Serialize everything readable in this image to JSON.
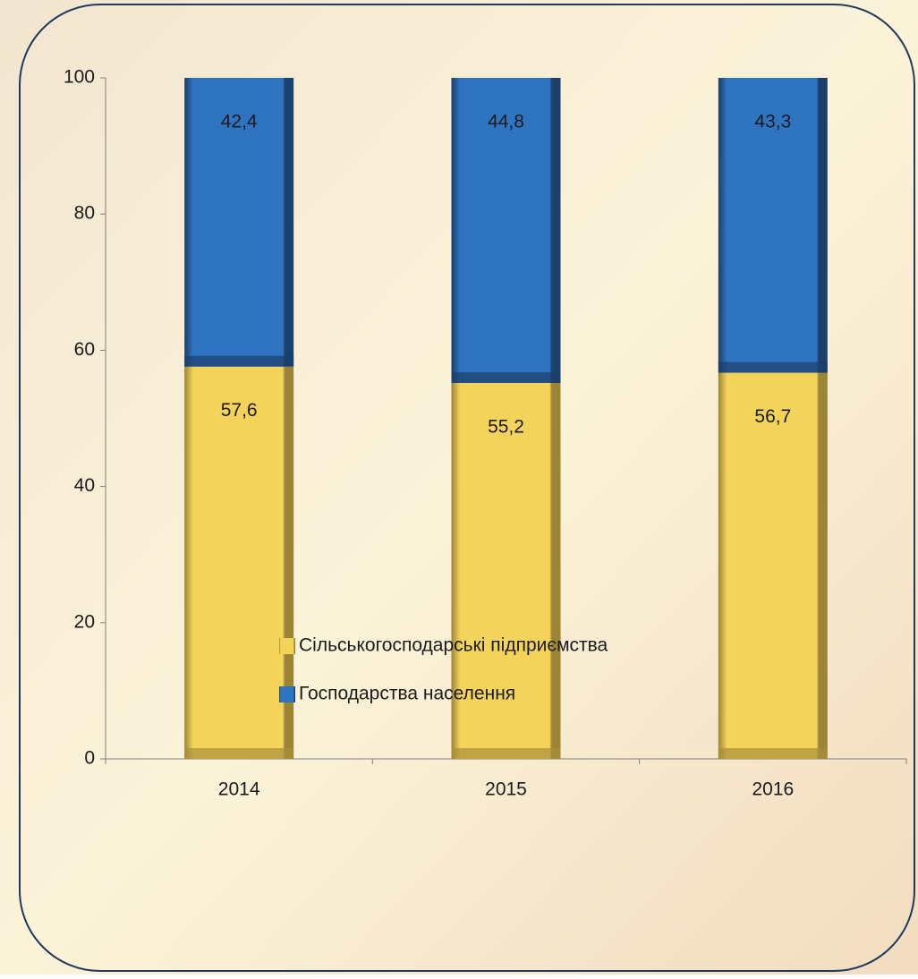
{
  "chart_data": {
    "type": "stacked_bar",
    "categories": [
      "2014",
      "2015",
      "2016"
    ],
    "series": [
      {
        "name": "Сільськогосподарські підприємства",
        "color": "#f3d35a",
        "values": [
          57.6,
          55.2,
          56.7
        ],
        "value_labels": [
          "57,6",
          "55,2",
          "56,7"
        ]
      },
      {
        "name": "Господарства населення",
        "color": "#2f74c0",
        "values": [
          42.4,
          44.8,
          43.3
        ],
        "value_labels": [
          "42,4",
          "44,8",
          "43,3"
        ]
      }
    ],
    "ylim": [
      0,
      100
    ],
    "yticks": [
      0,
      20,
      40,
      60,
      80,
      100
    ],
    "grid": false,
    "legend": "bottom"
  }
}
